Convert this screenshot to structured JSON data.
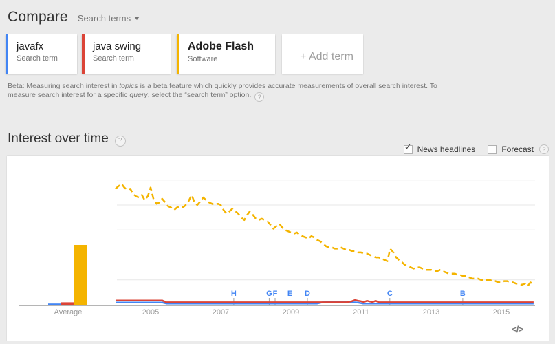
{
  "header": {
    "title": "Compare",
    "compare_type": "Search terms"
  },
  "terms": [
    {
      "label": "javafx",
      "type": "Search term",
      "color": "#4285f4"
    },
    {
      "label": "java swing",
      "type": "Search term",
      "color": "#db4437"
    },
    {
      "label": "Adobe Flash",
      "type": "Software",
      "color": "#f4b400",
      "selected": true
    }
  ],
  "add_term_label": "+ Add term",
  "beta": {
    "line1_pre": "Beta: Measuring search interest in ",
    "line1_italic": "topics",
    "line1_post": " is a beta feature which quickly provides accurate measurements of overall search interest. To",
    "line2_pre": "measure search interest for a specific ",
    "line2_italic": "query",
    "line2_post": ", select the “search term” option."
  },
  "section": {
    "title": "Interest over time"
  },
  "controls": {
    "news_headlines": "News headlines",
    "news_checked": true,
    "forecast": "Forecast",
    "forecast_checked": false
  },
  "icons": {
    "help": "?",
    "check": "✓"
  },
  "embed": {
    "icon": "</>"
  },
  "colors": {
    "javafx": "#4285f4",
    "java_swing": "#db4437",
    "adobe_flash": "#f4b400",
    "axis": "#b5b5b5",
    "gridline": "#e7e7e7",
    "marker_letter": "#4285f4",
    "background": "#ebebeb"
  },
  "chart_data": {
    "type": "line",
    "title": "Interest over time",
    "x_axis": {
      "ticks": [
        2005,
        2007,
        2009,
        2011,
        2013,
        2015
      ],
      "range": [
        2004,
        2016
      ]
    },
    "y_axis": {
      "range": [
        0,
        100
      ],
      "gridlines": [
        20,
        40,
        60,
        80,
        100
      ],
      "labels_visible": false
    },
    "average_section": {
      "label": "Average",
      "bars": [
        {
          "name": "javafx",
          "value": 1,
          "color": "#4285f4"
        },
        {
          "name": "java swing",
          "value": 2,
          "color": "#db4437"
        },
        {
          "name": "Adobe Flash",
          "value": 48,
          "color": "#f4b400"
        }
      ]
    },
    "news_markers": [
      {
        "label": "H",
        "year": 2007.37
      },
      {
        "label": "G",
        "year": 2008.38
      },
      {
        "label": "F",
        "year": 2008.55
      },
      {
        "label": "E",
        "year": 2008.97
      },
      {
        "label": "D",
        "year": 2009.47
      },
      {
        "label": "C",
        "year": 2011.82
      },
      {
        "label": "B",
        "year": 2013.9
      }
    ],
    "series": [
      {
        "name": "javafx",
        "color": "#4285f4",
        "style": "solid",
        "points": [
          [
            2004.0,
            1.8
          ],
          [
            2005.33,
            1.8
          ],
          [
            2005.45,
            1
          ],
          [
            2009.0,
            1
          ],
          [
            2009.75,
            1
          ],
          [
            2009.9,
            2
          ],
          [
            2010.3,
            2.2
          ],
          [
            2010.6,
            2.2
          ],
          [
            2010.9,
            1.8
          ],
          [
            2011.05,
            1
          ],
          [
            2012.0,
            1
          ],
          [
            2013.0,
            1
          ],
          [
            2014.0,
            1
          ],
          [
            2015.0,
            1
          ],
          [
            2015.92,
            1
          ]
        ]
      },
      {
        "name": "java swing",
        "color": "#db4437",
        "style": "solid",
        "points": [
          [
            2004.0,
            3.5
          ],
          [
            2004.5,
            3.5
          ],
          [
            2005.0,
            3.5
          ],
          [
            2005.33,
            3.5
          ],
          [
            2005.45,
            2
          ],
          [
            2006.0,
            2
          ],
          [
            2007.0,
            2
          ],
          [
            2008.0,
            2
          ],
          [
            2009.0,
            2
          ],
          [
            2010.0,
            2
          ],
          [
            2010.6,
            2
          ],
          [
            2010.75,
            3
          ],
          [
            2010.83,
            3.8
          ],
          [
            2010.92,
            3.2
          ],
          [
            2011.0,
            2.8
          ],
          [
            2011.08,
            2.2
          ],
          [
            2011.17,
            3.2
          ],
          [
            2011.25,
            2.6
          ],
          [
            2011.33,
            2.2
          ],
          [
            2011.42,
            3.2
          ],
          [
            2011.5,
            2
          ],
          [
            2012.0,
            2
          ],
          [
            2013.0,
            2
          ],
          [
            2014.0,
            2
          ],
          [
            2015.0,
            2
          ],
          [
            2015.92,
            2
          ]
        ]
      },
      {
        "name": "Adobe Flash",
        "color": "#f4b400",
        "style": "dashed",
        "points": [
          [
            2004.0,
            93
          ],
          [
            2004.08,
            95
          ],
          [
            2004.17,
            97
          ],
          [
            2004.25,
            94
          ],
          [
            2004.33,
            92
          ],
          [
            2004.42,
            93
          ],
          [
            2004.5,
            89
          ],
          [
            2004.58,
            87
          ],
          [
            2004.67,
            86
          ],
          [
            2004.75,
            88
          ],
          [
            2004.83,
            84
          ],
          [
            2004.92,
            87
          ],
          [
            2005.0,
            94
          ],
          [
            2005.08,
            85
          ],
          [
            2005.17,
            81
          ],
          [
            2005.25,
            82
          ],
          [
            2005.33,
            85
          ],
          [
            2005.42,
            82
          ],
          [
            2005.5,
            79
          ],
          [
            2005.58,
            78
          ],
          [
            2005.67,
            76
          ],
          [
            2005.75,
            78
          ],
          [
            2005.83,
            79
          ],
          [
            2005.92,
            78
          ],
          [
            2006.0,
            80
          ],
          [
            2006.08,
            83
          ],
          [
            2006.17,
            88
          ],
          [
            2006.25,
            82
          ],
          [
            2006.33,
            80
          ],
          [
            2006.42,
            83
          ],
          [
            2006.5,
            86
          ],
          [
            2006.58,
            84
          ],
          [
            2006.67,
            82
          ],
          [
            2006.75,
            81
          ],
          [
            2006.83,
            80
          ],
          [
            2006.92,
            81
          ],
          [
            2007.0,
            80
          ],
          [
            2007.08,
            76
          ],
          [
            2007.17,
            73
          ],
          [
            2007.25,
            75
          ],
          [
            2007.33,
            77
          ],
          [
            2007.42,
            75
          ],
          [
            2007.5,
            73
          ],
          [
            2007.58,
            70
          ],
          [
            2007.67,
            68
          ],
          [
            2007.75,
            72
          ],
          [
            2007.83,
            75
          ],
          [
            2007.92,
            72
          ],
          [
            2008.0,
            69
          ],
          [
            2008.08,
            68
          ],
          [
            2008.17,
            69
          ],
          [
            2008.25,
            68
          ],
          [
            2008.33,
            67
          ],
          [
            2008.42,
            64
          ],
          [
            2008.5,
            61
          ],
          [
            2008.58,
            63
          ],
          [
            2008.67,
            65
          ],
          [
            2008.75,
            62
          ],
          [
            2008.83,
            60
          ],
          [
            2008.92,
            59
          ],
          [
            2009.0,
            58
          ],
          [
            2009.08,
            57
          ],
          [
            2009.17,
            58
          ],
          [
            2009.25,
            56
          ],
          [
            2009.33,
            55
          ],
          [
            2009.42,
            54
          ],
          [
            2009.5,
            53
          ],
          [
            2009.58,
            55
          ],
          [
            2009.67,
            54
          ],
          [
            2009.75,
            52
          ],
          [
            2009.83,
            51
          ],
          [
            2009.92,
            49
          ],
          [
            2010.0,
            47
          ],
          [
            2010.08,
            46
          ],
          [
            2010.17,
            46
          ],
          [
            2010.25,
            45
          ],
          [
            2010.33,
            45
          ],
          [
            2010.42,
            46
          ],
          [
            2010.5,
            45
          ],
          [
            2010.58,
            44
          ],
          [
            2010.67,
            44
          ],
          [
            2010.75,
            43
          ],
          [
            2010.83,
            43
          ],
          [
            2010.92,
            42
          ],
          [
            2011.0,
            42
          ],
          [
            2011.08,
            41
          ],
          [
            2011.17,
            41
          ],
          [
            2011.25,
            40
          ],
          [
            2011.33,
            39
          ],
          [
            2011.42,
            38
          ],
          [
            2011.5,
            38
          ],
          [
            2011.58,
            37
          ],
          [
            2011.67,
            36
          ],
          [
            2011.75,
            35
          ],
          [
            2011.83,
            45
          ],
          [
            2011.92,
            42
          ],
          [
            2012.0,
            38
          ],
          [
            2012.08,
            36
          ],
          [
            2012.17,
            34
          ],
          [
            2012.25,
            32
          ],
          [
            2012.33,
            31
          ],
          [
            2012.42,
            30
          ],
          [
            2012.5,
            29
          ],
          [
            2012.58,
            30
          ],
          [
            2012.67,
            30
          ],
          [
            2012.75,
            29
          ],
          [
            2012.83,
            28
          ],
          [
            2012.92,
            28
          ],
          [
            2013.0,
            28
          ],
          [
            2013.08,
            27
          ],
          [
            2013.17,
            27
          ],
          [
            2013.25,
            28
          ],
          [
            2013.33,
            27
          ],
          [
            2013.42,
            26
          ],
          [
            2013.5,
            25
          ],
          [
            2013.58,
            25
          ],
          [
            2013.67,
            25
          ],
          [
            2013.75,
            24
          ],
          [
            2013.83,
            24
          ],
          [
            2013.92,
            23
          ],
          [
            2014.0,
            23
          ],
          [
            2014.08,
            22
          ],
          [
            2014.17,
            21
          ],
          [
            2014.25,
            21
          ],
          [
            2014.33,
            21
          ],
          [
            2014.42,
            20
          ],
          [
            2014.5,
            20
          ],
          [
            2014.58,
            20
          ],
          [
            2014.67,
            20
          ],
          [
            2014.75,
            19
          ],
          [
            2014.83,
            19
          ],
          [
            2014.92,
            18
          ],
          [
            2015.0,
            18
          ],
          [
            2015.08,
            19
          ],
          [
            2015.17,
            19
          ],
          [
            2015.25,
            18
          ],
          [
            2015.33,
            18
          ],
          [
            2015.42,
            17
          ],
          [
            2015.5,
            17
          ],
          [
            2015.58,
            16
          ],
          [
            2015.67,
            17
          ],
          [
            2015.75,
            15
          ],
          [
            2015.83,
            18
          ],
          [
            2015.92,
            16
          ]
        ]
      }
    ]
  }
}
